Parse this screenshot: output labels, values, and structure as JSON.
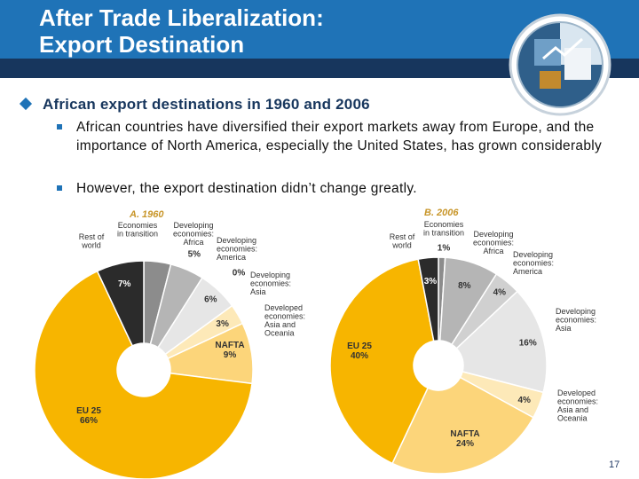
{
  "header": {
    "title_line1": "After Trade Liberalization:",
    "title_line2": "Export Destination"
  },
  "colors": {
    "header_blue": "#1f73b7",
    "header_dark": "#17365d",
    "eu": "#f7b500",
    "nafta": "#fcd57a",
    "asia_oceania": "#fde9b8",
    "dev_asia": "#e6e6e6",
    "dev_america": "#d0d0d0",
    "dev_africa": "#b5b5b5",
    "transition": "#8c8c8c",
    "rest": "#2b2b2b"
  },
  "main_bullet": "African export destinations in 1960 and 2006",
  "sub_bullets": [
    "African countries have diversified their export markets away from Europe, and the importance of North America, especially the United States, has grown considerably",
    "However, the export destination didn’t change greatly."
  ],
  "chart_data": [
    {
      "type": "pie",
      "title": "A.  1960",
      "slices": [
        {
          "name": "Economies in transition",
          "value": 4,
          "label": "4%"
        },
        {
          "name": "Developing economies: Africa",
          "value": 5,
          "label": "5%"
        },
        {
          "name": "Developing economies: America",
          "value": 0,
          "label": "0%"
        },
        {
          "name": "Developing economies: Asia",
          "value": 6,
          "label": "6%"
        },
        {
          "name": "Developed economies: Asia and Oceania",
          "value": 3,
          "label": "3%"
        },
        {
          "name": "NAFTA",
          "value": 9,
          "label": "9%"
        },
        {
          "name": "EU 25",
          "value": 66,
          "label": "66%"
        },
        {
          "name": "Rest of world",
          "value": 7,
          "label": "7%"
        }
      ],
      "category_labels": {
        "transition": [
          "Economies",
          "in transition"
        ],
        "africa": [
          "Developing",
          "economies:",
          "Africa"
        ],
        "america": [
          "Developing",
          "economies:",
          "America"
        ],
        "asia": [
          "Developing",
          "economies:",
          "Asia"
        ],
        "developed": [
          "Developed",
          "economies:",
          "Asia and",
          "Oceania"
        ],
        "rest": [
          "Rest of",
          "world"
        ],
        "nafta": "NAFTA",
        "eu": "EU 25"
      }
    },
    {
      "type": "pie",
      "title": "B.  2006",
      "slices": [
        {
          "name": "Economies in transition",
          "value": 1,
          "label": "1%"
        },
        {
          "name": "Developing economies: Africa",
          "value": 8,
          "label": "8%"
        },
        {
          "name": "Developing economies: America",
          "value": 4,
          "label": "4%"
        },
        {
          "name": "Developing economies: Asia",
          "value": 16,
          "label": "16%"
        },
        {
          "name": "Developed economies: Asia and Oceania",
          "value": 4,
          "label": "4%"
        },
        {
          "name": "NAFTA",
          "value": 24,
          "label": "24%"
        },
        {
          "name": "EU 25",
          "value": 40,
          "label": "40%"
        },
        {
          "name": "Rest of world",
          "value": 3,
          "label": "3%"
        }
      ],
      "category_labels": {
        "transition": [
          "Economies",
          "in transition"
        ],
        "africa": [
          "Developing",
          "economies:",
          "Africa"
        ],
        "america": [
          "Developing",
          "economies:",
          "America"
        ],
        "asia": [
          "Developing",
          "economies:",
          "Asia"
        ],
        "developed": [
          "Developed",
          "economies:",
          "Asia and",
          "Oceania"
        ],
        "rest": [
          "Rest of",
          "world"
        ],
        "nafta": "NAFTA",
        "eu": "EU 25"
      }
    }
  ],
  "page_number": "17"
}
